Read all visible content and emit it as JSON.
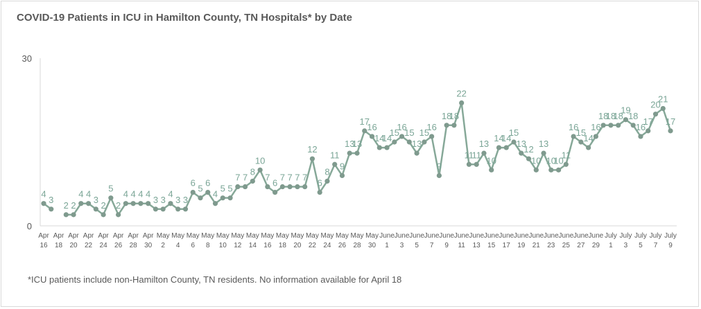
{
  "chart_data": {
    "type": "line",
    "title": "COVID-19 Patients in ICU in Hamilton County, TN Hospitals* by Date",
    "footnote": "*ICU patients include non-Hamilton County, TN residents. No information available for April 18",
    "xlabel": "",
    "ylabel": "",
    "ylim": [
      0,
      30
    ],
    "yticks": [
      "0",
      "30"
    ],
    "grid": false,
    "line_color": "#86a898",
    "marker_color": "#7f9a8e",
    "label_color": "#7aa596",
    "tick_label_rows": [
      [
        "Apr",
        "16"
      ],
      [
        "Apr",
        "18"
      ],
      [
        "Apr",
        "20"
      ],
      [
        "Apr",
        "22"
      ],
      [
        "Apr",
        "24"
      ],
      [
        "Apr",
        "26"
      ],
      [
        "Apr",
        "28"
      ],
      [
        "Apr",
        "30"
      ],
      [
        "May",
        "2"
      ],
      [
        "May",
        "4"
      ],
      [
        "May",
        "6"
      ],
      [
        "May",
        "8"
      ],
      [
        "May",
        "10"
      ],
      [
        "May",
        "12"
      ],
      [
        "May",
        "14"
      ],
      [
        "May",
        "16"
      ],
      [
        "May",
        "18"
      ],
      [
        "May",
        "20"
      ],
      [
        "May",
        "22"
      ],
      [
        "May",
        "24"
      ],
      [
        "May",
        "26"
      ],
      [
        "May",
        "28"
      ],
      [
        "May",
        "30"
      ],
      [
        "June",
        "1"
      ],
      [
        "June",
        "3"
      ],
      [
        "June",
        "5"
      ],
      [
        "June",
        "7"
      ],
      [
        "June",
        "9"
      ],
      [
        "June",
        "11"
      ],
      [
        "June",
        "13"
      ],
      [
        "June",
        "15"
      ],
      [
        "June",
        "17"
      ],
      [
        "June",
        "19"
      ],
      [
        "June",
        "21"
      ],
      [
        "June",
        "23"
      ],
      [
        "June",
        "25"
      ],
      [
        "June",
        "27"
      ],
      [
        "June",
        "29"
      ],
      [
        "July",
        "1"
      ],
      [
        "July",
        "3"
      ],
      [
        "July",
        "5"
      ],
      [
        "July",
        "7"
      ],
      [
        "July",
        "9"
      ]
    ],
    "values": [
      4,
      3,
      null,
      2,
      2,
      4,
      4,
      3,
      2,
      5,
      2,
      4,
      4,
      4,
      4,
      3,
      3,
      4,
      3,
      3,
      6,
      5,
      6,
      4,
      5,
      5,
      7,
      7,
      8,
      10,
      7,
      6,
      7,
      7,
      7,
      7,
      12,
      6,
      8,
      11,
      9,
      13,
      13,
      17,
      16,
      14,
      14,
      15,
      16,
      15,
      13,
      15,
      16,
      9,
      18,
      18,
      22,
      11,
      11,
      13,
      10,
      14,
      14,
      15,
      13,
      12,
      10,
      13,
      10,
      10,
      11,
      16,
      15,
      14,
      16,
      18,
      18,
      18,
      19,
      18,
      16,
      17,
      20,
      21,
      17
    ]
  }
}
